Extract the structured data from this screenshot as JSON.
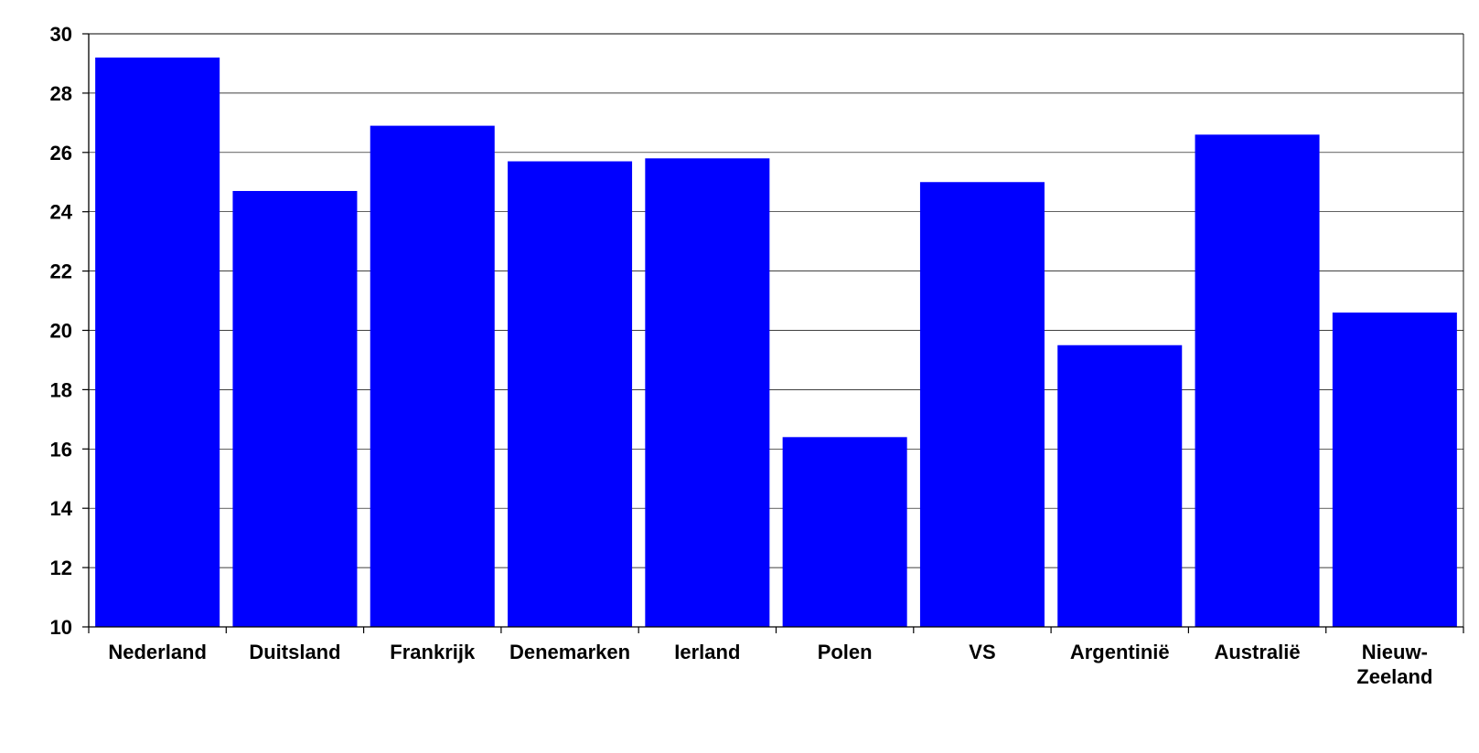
{
  "chart_data": {
    "type": "bar",
    "title": "",
    "xlabel": "",
    "ylabel": "",
    "categories": [
      "Nederland",
      "Duitsland",
      "Frankrijk",
      "Denemarken",
      "Ierland",
      "Polen",
      "VS",
      "Argentinië",
      "Australië",
      "Nieuw-Zeeland"
    ],
    "category_label_lines": [
      [
        "Nederland"
      ],
      [
        "Duitsland"
      ],
      [
        "Frankrijk"
      ],
      [
        "Denemarken"
      ],
      [
        "Ierland"
      ],
      [
        "Polen"
      ],
      [
        "VS"
      ],
      [
        "Argentinië"
      ],
      [
        "Australië"
      ],
      [
        "Nieuw-",
        "Zeeland"
      ]
    ],
    "values": [
      29.2,
      24.7,
      26.9,
      25.7,
      25.8,
      16.4,
      25.0,
      19.5,
      26.6,
      20.6
    ],
    "ylim": [
      10,
      30
    ],
    "yticks": [
      10,
      12,
      14,
      16,
      18,
      20,
      22,
      24,
      26,
      28,
      30
    ],
    "grid": true,
    "legend": "none",
    "colors": {
      "bar": "#0000ff",
      "axis": "#000000",
      "grid": "#000000",
      "background": "#ffffff"
    }
  }
}
